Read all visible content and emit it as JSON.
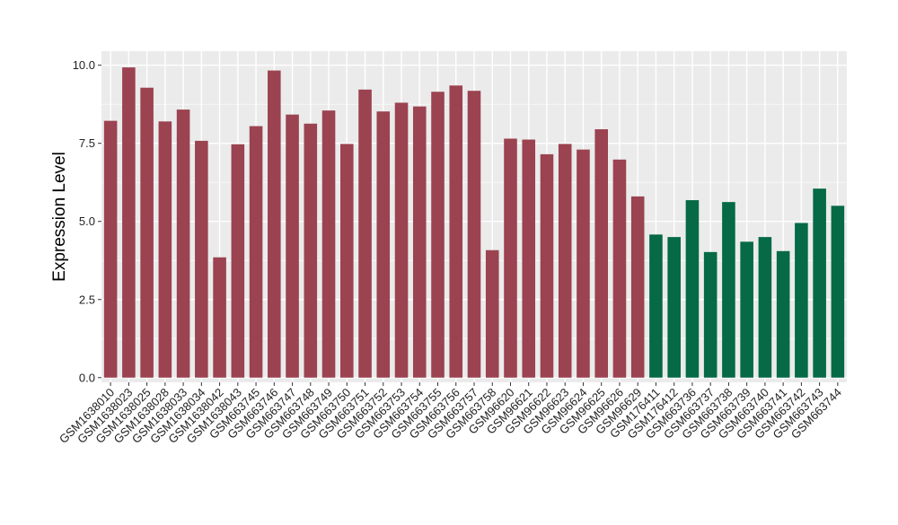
{
  "chart_data": {
    "type": "bar",
    "title": "",
    "xlabel": "",
    "ylabel": "Expression Level",
    "ylim": [
      -0.15,
      10.45
    ],
    "yticks": [
      "0.0",
      "2.5",
      "5.0",
      "7.5",
      "10.0"
    ],
    "ytick_values": [
      0,
      2.5,
      5.0,
      7.5,
      10.0
    ],
    "grid": true,
    "legend": "none",
    "colors": {
      "group1": "#9b4350",
      "group2": "#056a45",
      "panel": "#ebebeb",
      "grid": "#ffffff"
    },
    "categories": [
      "GSM1638010",
      "GSM1638023",
      "GSM1638025",
      "GSM1638028",
      "GSM1638033",
      "GSM1638034",
      "GSM1638042",
      "GSM1638043",
      "GSM663745",
      "GSM663746",
      "GSM663747",
      "GSM663748",
      "GSM663749",
      "GSM663750",
      "GSM663751",
      "GSM663752",
      "GSM663753",
      "GSM663754",
      "GSM663755",
      "GSM663756",
      "GSM663757",
      "GSM663758",
      "GSM96620",
      "GSM96621",
      "GSM96622",
      "GSM96623",
      "GSM96624",
      "GSM96625",
      "GSM96626",
      "GSM96629",
      "GSM176411",
      "GSM176412",
      "GSM663736",
      "GSM663737",
      "GSM663738",
      "GSM663739",
      "GSM663740",
      "GSM663741",
      "GSM663742",
      "GSM663743",
      "GSM663744"
    ],
    "values": [
      8.22,
      9.93,
      9.28,
      8.2,
      8.58,
      7.58,
      3.85,
      7.47,
      8.05,
      9.83,
      8.42,
      8.13,
      8.55,
      7.48,
      9.22,
      8.52,
      8.8,
      8.68,
      9.15,
      9.35,
      9.18,
      4.08,
      7.65,
      7.62,
      7.15,
      7.48,
      7.3,
      7.95,
      6.98,
      5.8,
      4.58,
      4.5,
      5.68,
      4.02,
      5.62,
      4.35,
      4.5,
      4.05,
      4.95,
      6.05,
      5.5
    ],
    "groups": [
      "group1",
      "group1",
      "group1",
      "group1",
      "group1",
      "group1",
      "group1",
      "group1",
      "group1",
      "group1",
      "group1",
      "group1",
      "group1",
      "group1",
      "group1",
      "group1",
      "group1",
      "group1",
      "group1",
      "group1",
      "group1",
      "group1",
      "group1",
      "group1",
      "group1",
      "group1",
      "group1",
      "group1",
      "group1",
      "group1",
      "group2",
      "group2",
      "group2",
      "group2",
      "group2",
      "group2",
      "group2",
      "group2",
      "group2",
      "group2",
      "group2"
    ]
  }
}
